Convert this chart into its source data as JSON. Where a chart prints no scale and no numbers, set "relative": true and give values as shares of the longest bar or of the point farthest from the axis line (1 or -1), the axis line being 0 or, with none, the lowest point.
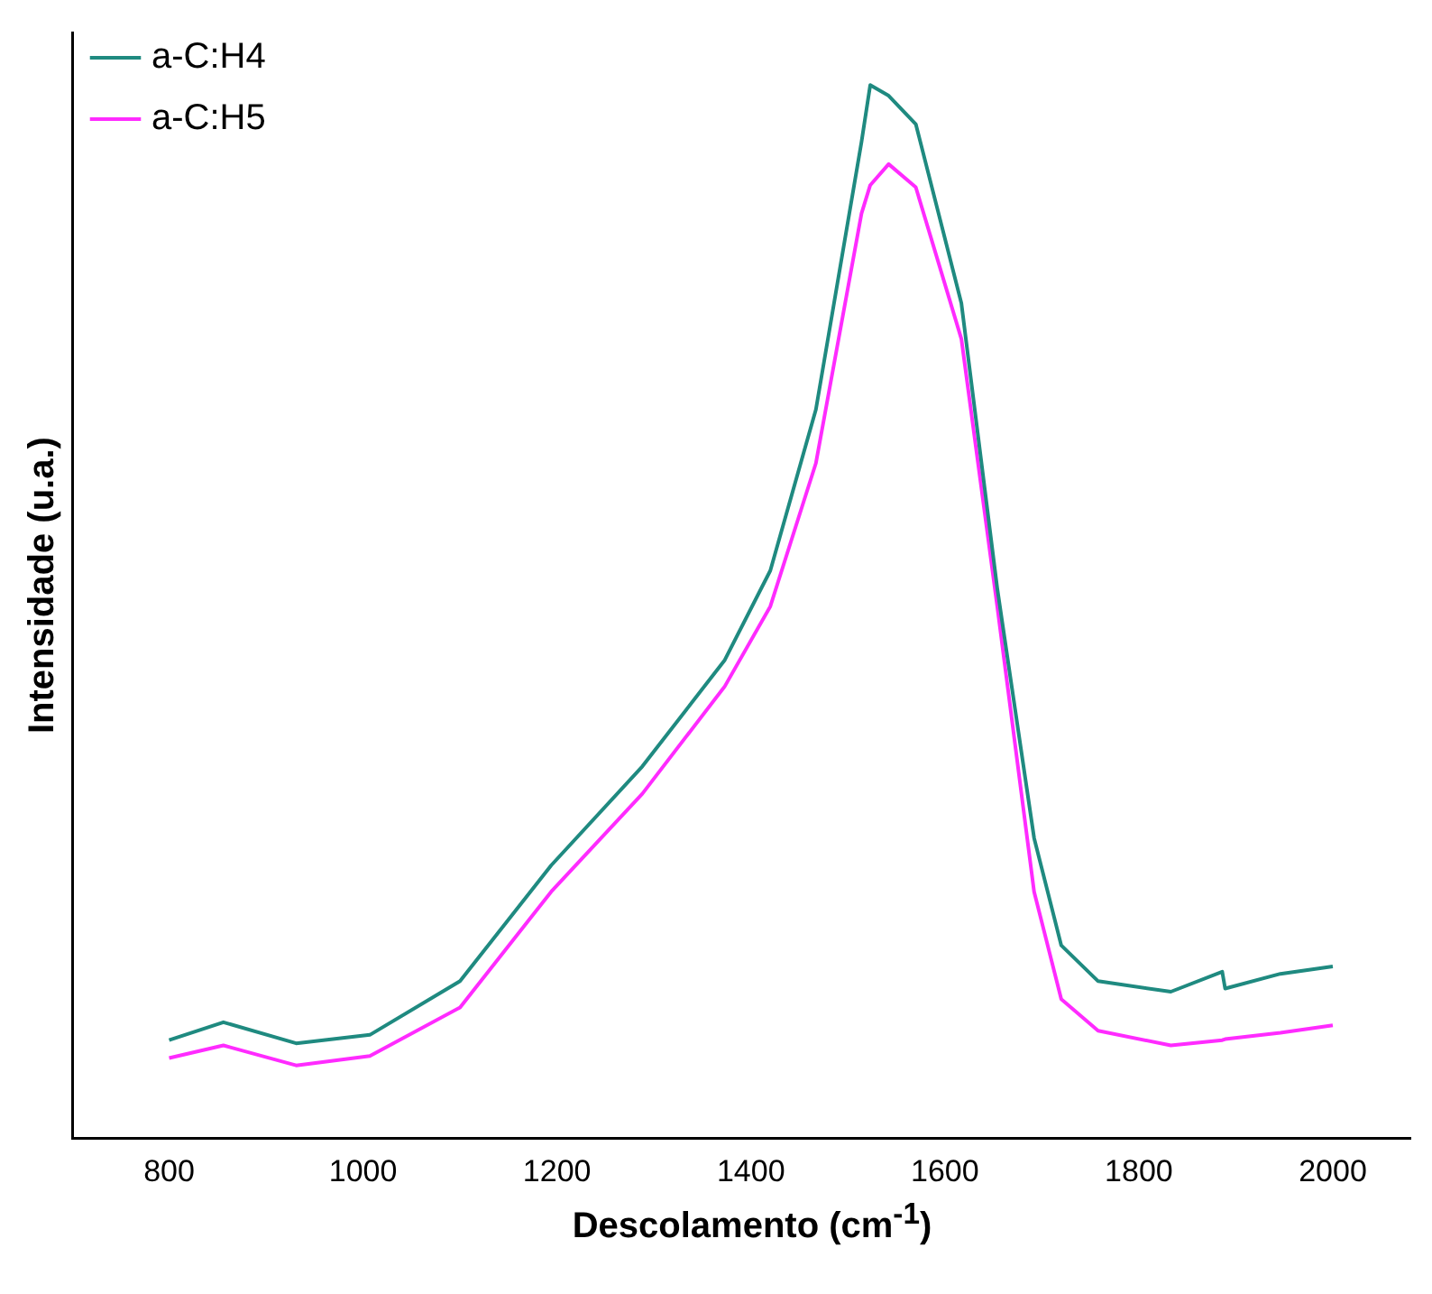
{
  "chart_data": {
    "type": "line",
    "xlabel": "Descolamento (cm$^{-1}$)",
    "ylabel": "Intensidade (u.a.)",
    "relative": true,
    "xlim": [
      700,
      2080
    ],
    "xticks": [
      800,
      1000,
      1200,
      1400,
      1600,
      1800,
      2000
    ],
    "grid": false,
    "legend": "top left",
    "marker": "none",
    "line_style": "solid",
    "x": [
      800,
      856,
      931,
      1007,
      1100,
      1194,
      1288,
      1373,
      1420,
      1467,
      1514,
      1523,
      1542,
      1570,
      1617,
      1654,
      1692,
      1720,
      1758,
      1833,
      1886,
      1889,
      1946,
      2000
    ],
    "series": [
      {
        "name": "a-C:H4",
        "color": "#1f8a80",
        "values": [
          0.093,
          0.11,
          0.09,
          0.098,
          0.149,
          0.259,
          0.353,
          0.454,
          0.539,
          0.692,
          0.946,
          1.0,
          0.99,
          0.963,
          0.793,
          0.522,
          0.285,
          0.183,
          0.149,
          0.139,
          0.158,
          0.142,
          0.156,
          0.163
        ]
      },
      {
        "name": "a-C:H5",
        "color": "#ff2bff",
        "values": [
          0.076,
          0.088,
          0.069,
          0.078,
          0.124,
          0.234,
          0.327,
          0.429,
          0.505,
          0.641,
          0.878,
          0.905,
          0.925,
          0.903,
          0.759,
          0.505,
          0.234,
          0.132,
          0.102,
          0.088,
          0.093,
          0.094,
          0.1,
          0.107
        ]
      }
    ]
  }
}
